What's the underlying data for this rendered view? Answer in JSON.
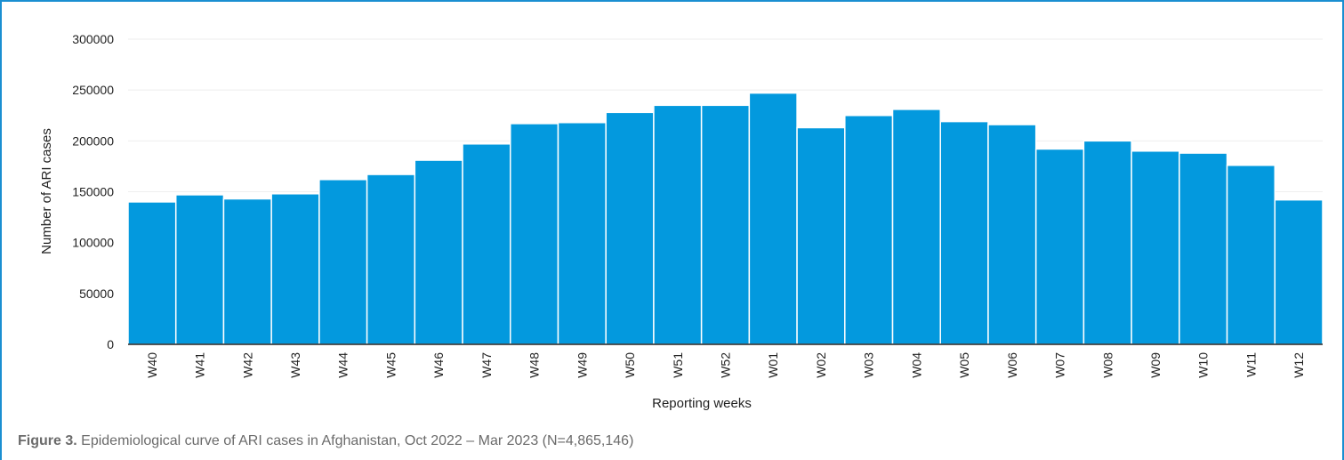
{
  "figure": {
    "label": "Figure 3.",
    "text": "Epidemiological curve of ARI cases in Afghanistan, Oct 2022 – Mar 2023 (N=4,865,146)"
  },
  "colors": {
    "bar": "#0399de",
    "bar_stroke": "#ffffff",
    "frame": "#1a8fd1",
    "grid": "#eeeeee",
    "axis": "#222222"
  },
  "chart_data": {
    "type": "bar",
    "xlabel": "Reporting weeks",
    "ylabel": "Number of ARI  cases",
    "ylim": [
      0,
      300000
    ],
    "yticks": [
      0,
      50000,
      100000,
      150000,
      200000,
      250000,
      300000
    ],
    "grid": true,
    "categories": [
      "W40",
      "W41",
      "W42",
      "W43",
      "W44",
      "W45",
      "W46",
      "W47",
      "W48",
      "W49",
      "W50",
      "W51",
      "W52",
      "W01",
      "W02",
      "W03",
      "W04",
      "W05",
      "W06",
      "W07",
      "W08",
      "W09",
      "W10",
      "W11",
      "W12"
    ],
    "values": [
      140000,
      147000,
      143000,
      148000,
      162000,
      167000,
      181000,
      197000,
      217000,
      218000,
      228000,
      235000,
      235000,
      247000,
      213000,
      225000,
      231000,
      219000,
      216000,
      192000,
      200000,
      190000,
      188000,
      176000,
      142000
    ]
  }
}
